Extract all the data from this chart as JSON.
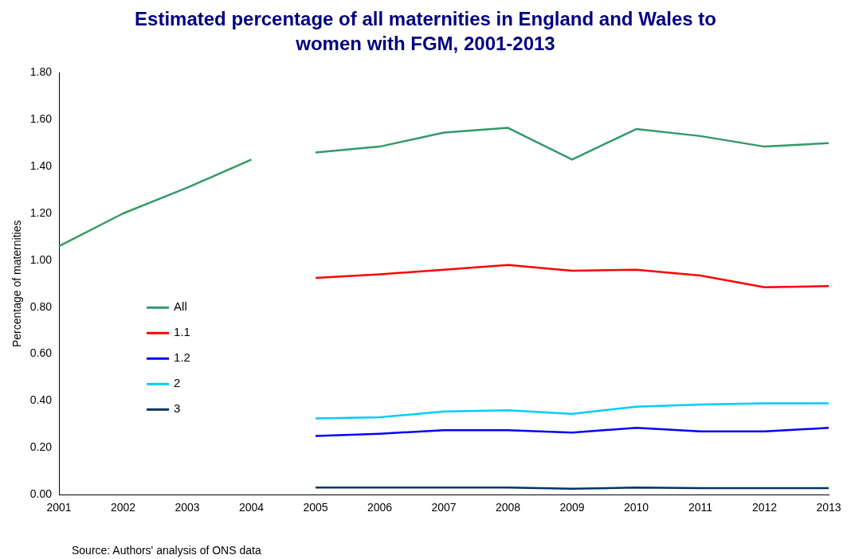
{
  "chart_data": {
    "type": "line",
    "title": "Estimated percentage of all maternities in England and Wales to\nwomen with FGM, 2001-2013",
    "ylabel": "Percentage of maternities",
    "annotations": [
      "Source: Authors' analysis of ONS data"
    ],
    "categories": [
      "2001",
      "2002",
      "2003",
      "2004",
      "2005",
      "2006",
      "2007",
      "2008",
      "2009",
      "2010",
      "2011",
      "2012",
      "2013"
    ],
    "series": [
      {
        "color": "#339966",
        "values": [
          1.06,
          1.2,
          1.31,
          1.43,
          null,
          null,
          null,
          null,
          null,
          null,
          null,
          null,
          null
        ]
      },
      {
        "name": "All",
        "color": "#339966",
        "values": [
          null,
          null,
          null,
          null,
          1.46,
          1.485,
          1.545,
          1.565,
          1.43,
          1.56,
          1.53,
          1.485,
          1.5
        ]
      },
      {
        "name": "1.1",
        "color": "#ff0000",
        "values": [
          null,
          null,
          null,
          null,
          0.925,
          0.94,
          0.96,
          0.98,
          0.955,
          0.96,
          0.935,
          0.885,
          0.89
        ]
      },
      {
        "name": "1.2",
        "color": "#0000ff",
        "values": [
          null,
          null,
          null,
          null,
          0.25,
          0.26,
          0.275,
          0.275,
          0.265,
          0.285,
          0.27,
          0.27,
          0.285
        ]
      },
      {
        "name": "2",
        "color": "#00ccff",
        "values": [
          null,
          null,
          null,
          null,
          0.325,
          0.33,
          0.355,
          0.36,
          0.345,
          0.375,
          0.385,
          0.39,
          0.39
        ]
      },
      {
        "name": "3",
        "color": "#003366",
        "values": [
          null,
          null,
          null,
          null,
          0.03,
          0.03,
          0.03,
          0.03,
          0.025,
          0.03,
          0.028,
          0.028,
          0.028
        ]
      }
    ],
    "ylim": [
      0,
      1.8
    ],
    "yticks": [
      {
        "value": 0,
        "label": "0.00"
      },
      {
        "value": 0.2,
        "label": "0.20"
      },
      {
        "value": 0.4,
        "label": "0.40"
      },
      {
        "value": 0.6,
        "label": "0.60"
      },
      {
        "value": 0.8,
        "label": "0.80"
      },
      {
        "value": 1,
        "label": "1.00"
      },
      {
        "value": 1.2,
        "label": "1.20"
      },
      {
        "value": 1.4,
        "label": "1.40"
      },
      {
        "value": 1.6,
        "label": "1.60"
      },
      {
        "value": 1.8,
        "label": "1.80"
      }
    ],
    "grid": false,
    "legend": "left",
    "marker": "none",
    "line_style": "solid"
  }
}
